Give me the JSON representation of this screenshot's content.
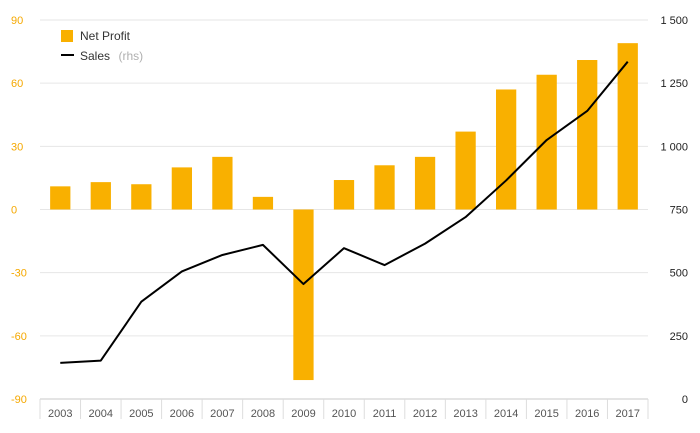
{
  "chart_data": {
    "type": "bar",
    "categories": [
      "2003",
      "2004",
      "2005",
      "2006",
      "2007",
      "2008",
      "2009",
      "2010",
      "2011",
      "2012",
      "2013",
      "2014",
      "2015",
      "2016",
      "2017"
    ],
    "series": [
      {
        "name": "Net Profit",
        "type": "bar",
        "axis": "left",
        "color": "#f9b000",
        "values": [
          11,
          13,
          12,
          20,
          25,
          6,
          -81,
          14,
          21,
          25,
          37,
          57,
          64,
          71,
          79
        ]
      },
      {
        "name": "Sales",
        "legend_note": "(rhs)",
        "type": "line",
        "axis": "right",
        "color": "#000000",
        "values": [
          143,
          152,
          385,
          505,
          570,
          610,
          455,
          597,
          530,
          615,
          720,
          865,
          1025,
          1140,
          1335
        ]
      }
    ],
    "y_left": {
      "min": -90,
      "max": 90,
      "ticks": [
        90,
        60,
        30,
        0,
        -30,
        -60,
        -90
      ],
      "tick_labels": [
        "90",
        "60",
        "30",
        "0",
        "-30",
        "-60",
        "-90"
      ],
      "color": "#f5a800"
    },
    "y_right": {
      "min": 0,
      "max": 1500,
      "ticks": [
        1500,
        1250,
        1000,
        750,
        500,
        250,
        0
      ],
      "tick_labels": [
        "1 500",
        "1 250",
        "1 000",
        "750",
        "500",
        "250",
        "0"
      ],
      "color": "#222222"
    },
    "grid": true,
    "legend_position": "top-left",
    "title": "",
    "xlabel": "",
    "ylabel": ""
  }
}
